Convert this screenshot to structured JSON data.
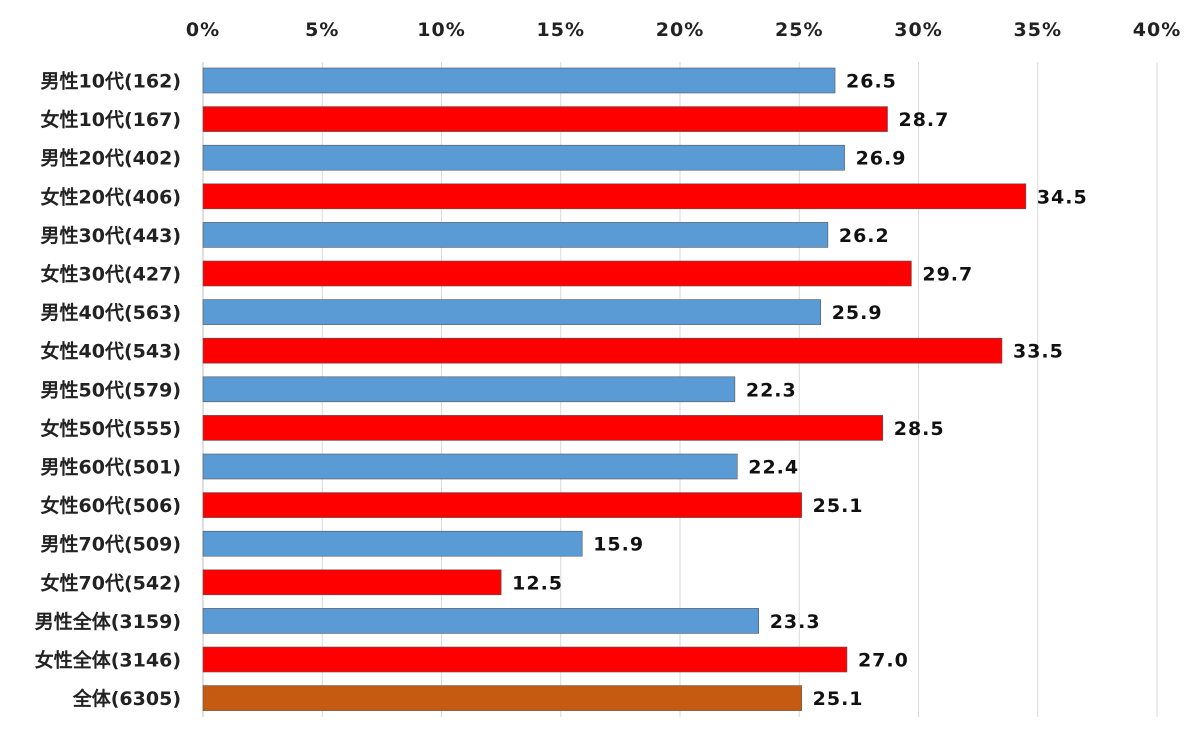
{
  "chart_data": {
    "type": "bar",
    "orientation": "horizontal",
    "title": "",
    "xlabel": "",
    "ylabel": "",
    "xlim": [
      0,
      40
    ],
    "x_ticks": [
      "0%",
      "5%",
      "10%",
      "15%",
      "20%",
      "25%",
      "30%",
      "35%",
      "40%"
    ],
    "x_tick_values": [
      0,
      5,
      10,
      15,
      20,
      25,
      30,
      35,
      40
    ],
    "x_axis_position": "top",
    "grid": true,
    "legend": "none",
    "colors": {
      "male": "#5b9bd5",
      "female": "#ff0000",
      "total": "#c55a11"
    },
    "categories": [
      "男性10代(162)",
      "女性10代(167)",
      "男性20代(402)",
      "女性20代(406)",
      "男性30代(443)",
      "女性30代(427)",
      "男性40代(563)",
      "女性40代(543)",
      "男性50代(579)",
      "女性50代(555)",
      "男性60代(501)",
      "女性60代(506)",
      "男性70代(509)",
      "女性70代(542)",
      "男性全体(3159)",
      "女性全体(3146)",
      "全体(6305)"
    ],
    "values": [
      26.5,
      28.7,
      26.9,
      34.5,
      26.2,
      29.7,
      25.9,
      33.5,
      22.3,
      28.5,
      22.4,
      25.1,
      15.9,
      12.5,
      23.3,
      27.0,
      25.1
    ],
    "value_labels": [
      "26.5",
      "28.7",
      "26.9",
      "34.5",
      "26.2",
      "29.7",
      "25.9",
      "33.5",
      "22.3",
      "28.5",
      "22.4",
      "25.1",
      "15.9",
      "12.5",
      "23.3",
      "27.0",
      "25.1"
    ],
    "bar_groups": [
      "male",
      "female",
      "male",
      "female",
      "male",
      "female",
      "male",
      "female",
      "male",
      "female",
      "male",
      "female",
      "male",
      "female",
      "male",
      "female",
      "total"
    ]
  }
}
